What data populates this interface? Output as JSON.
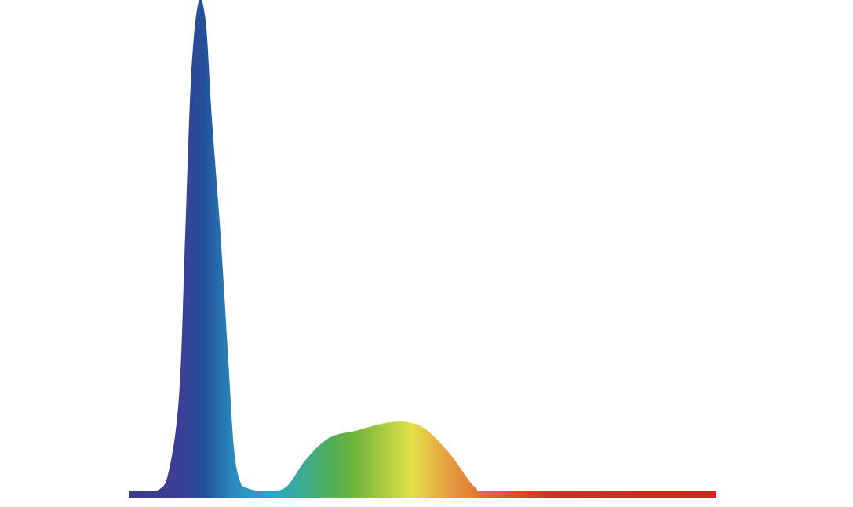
{
  "chart_data": {
    "type": "area",
    "title": "",
    "xlabel": "",
    "ylabel": "",
    "xlim": [
      400,
      800
    ],
    "ylim": [
      0,
      1
    ],
    "grid": false,
    "legend": "none",
    "fill": "spectral-gradient",
    "gradient_colors": [
      "#3f3a8c",
      "#3a3f95",
      "#24509a",
      "#2a8fc0",
      "#27a6d0",
      "#4fae5a",
      "#6cb43a",
      "#e4e04a",
      "#e6a040",
      "#e06a30",
      "#dd2a24",
      "#dd2020"
    ],
    "series": [
      {
        "x": [
          400,
          419,
          427,
          434,
          438,
          442,
          447,
          452,
          456,
          462,
          467,
          471,
          475,
          480,
          494,
          507,
          520,
          536,
          555,
          574,
          590,
          603,
          619,
          636,
          649,
          800
        ],
        "values": [
          0.0,
          0.008,
          0.05,
          0.21,
          0.53,
          0.85,
          1.0,
          0.96,
          0.77,
          0.53,
          0.29,
          0.1,
          0.03,
          0.013,
          0.006,
          0.016,
          0.07,
          0.115,
          0.13,
          0.145,
          0.147,
          0.13,
          0.08,
          0.013,
          0.006,
          0.006
        ]
      }
    ]
  }
}
